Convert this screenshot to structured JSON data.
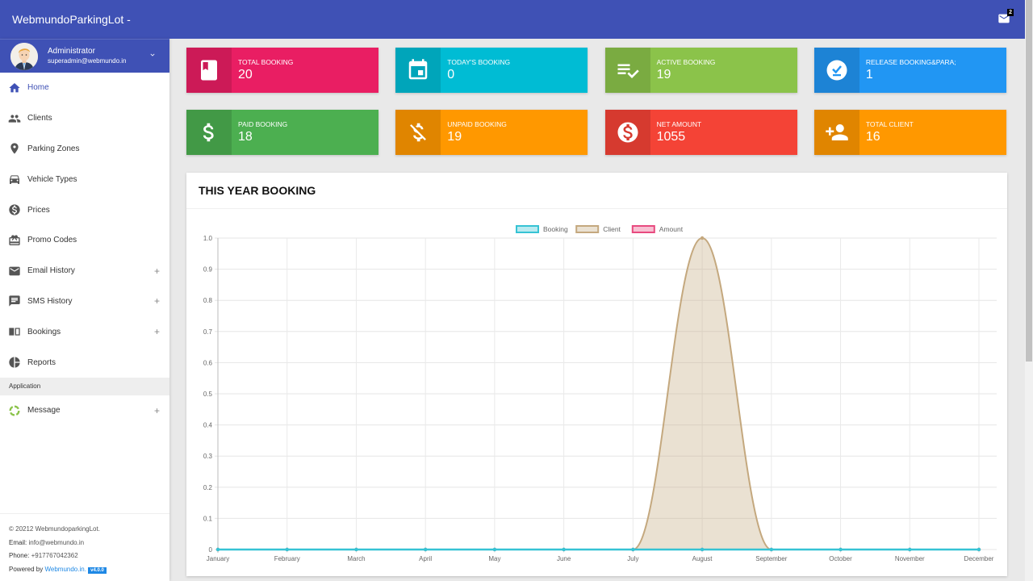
{
  "app": {
    "title": "WebmundoParkingLot -"
  },
  "header": {
    "mail_count": "2"
  },
  "user": {
    "name": "Administrator",
    "email": "superadmin@webmundo.in"
  },
  "sidebar": {
    "items": [
      {
        "label": "Home",
        "icon": "home-icon",
        "active": true,
        "expandable": false
      },
      {
        "label": "Clients",
        "icon": "people-icon",
        "expandable": false
      },
      {
        "label": "Parking Zones",
        "icon": "location-pin-icon",
        "expandable": false
      },
      {
        "label": "Vehicle Types",
        "icon": "car-icon",
        "expandable": false
      },
      {
        "label": "Prices",
        "icon": "dollar-circle-icon",
        "expandable": false
      },
      {
        "label": "Promo Codes",
        "icon": "gift-card-icon",
        "expandable": false
      },
      {
        "label": "Email History",
        "icon": "email-icon",
        "expandable": true
      },
      {
        "label": "SMS History",
        "icon": "chat-icon",
        "expandable": true
      },
      {
        "label": "Bookings",
        "icon": "book-open-icon",
        "expandable": true
      },
      {
        "label": "Reports",
        "icon": "pie-chart-icon",
        "expandable": false
      }
    ],
    "section_header": "Application",
    "app_items": [
      {
        "label": "Message",
        "icon": "loading-ring-icon",
        "expandable": true
      }
    ],
    "plus": "+",
    "footer": {
      "copyright": "© 20212 WebmundoparkingLot.",
      "email_label": "Email:",
      "email": "info@webmundo.in",
      "phone_label": "Phone:",
      "phone": "+917767042362",
      "powered_by": "Powered by",
      "powered_link": "Webmundo.in.",
      "version": "v4.0.0"
    }
  },
  "cards": [
    {
      "label": "TOTAL BOOKING",
      "value": "20",
      "color": "#e91e63",
      "icon": "bookmark-book-icon"
    },
    {
      "label": "TODAY'S BOOKING",
      "value": "0",
      "color": "#00bcd4",
      "icon": "calendar-icon"
    },
    {
      "label": "ACTIVE BOOKING",
      "value": "19",
      "color": "#8bc34a",
      "icon": "playlist-check-icon"
    },
    {
      "label": "RELEASE BOOKING&PARA;",
      "value": "1",
      "color": "#2196f3",
      "icon": "check-circle-icon"
    },
    {
      "label": "PAID BOOKING",
      "value": "18",
      "color": "#4caf50",
      "icon": "dollar-icon"
    },
    {
      "label": "UNPAID BOOKING",
      "value": "19",
      "color": "#ff9800",
      "icon": "money-off-icon"
    },
    {
      "label": "NET AMOUNT",
      "value": "1055",
      "color": "#f44336",
      "icon": "dollar-circle-icon"
    },
    {
      "label": "TOTAL CLIENT",
      "value": "16",
      "color": "#ff9800",
      "icon": "person-add-icon"
    }
  ],
  "chart_section": {
    "title": "THIS YEAR BOOKING"
  },
  "chart_data": {
    "type": "line",
    "title": "THIS YEAR BOOKING",
    "xlabel": "",
    "ylabel": "",
    "categories": [
      "January",
      "February",
      "March",
      "April",
      "May",
      "June",
      "July",
      "August",
      "September",
      "October",
      "November",
      "December"
    ],
    "series": [
      {
        "name": "Booking",
        "values": [
          0,
          0,
          0,
          0,
          0,
          0,
          0,
          0,
          0,
          0,
          0,
          0
        ],
        "border": "#36c3d4",
        "fill": "rgba(54,195,212,0.35)"
      },
      {
        "name": "Client",
        "values": [
          0,
          0,
          0,
          0,
          0,
          0,
          0,
          1,
          0,
          0,
          0,
          0
        ],
        "border": "#c4a87e",
        "fill": "rgba(196,168,126,0.35)"
      },
      {
        "name": "Amount",
        "values": [
          0,
          0,
          0,
          0,
          0,
          0,
          0,
          0,
          0,
          0,
          0,
          0
        ],
        "border": "#e84a7f",
        "fill": "rgba(232,74,127,0.35)"
      }
    ],
    "ylim": [
      0,
      1.0
    ],
    "yticks": [
      "0",
      "0.1",
      "0.2",
      "0.3",
      "0.4",
      "0.5",
      "0.6",
      "0.7",
      "0.8",
      "0.9",
      "1.0"
    ],
    "grid": true,
    "legend_position": "top"
  }
}
